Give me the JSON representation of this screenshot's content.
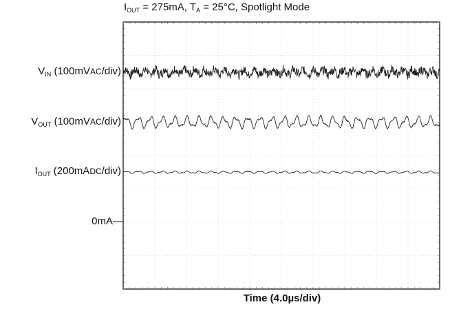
{
  "chart_data": {
    "type": "line",
    "title": {
      "i": "I",
      "i_sub": "OUT",
      "mid": " = 275mA, T",
      "t_sub": "A",
      "rest": " = 25°C, Spotlight Mode"
    },
    "xlabel": "Time (4.0µs/div)",
    "x_divisions": 10,
    "y_divisions": 8,
    "grid": true,
    "series": [
      {
        "label": {
          "main": "V",
          "sub": "IN",
          "unit_pre": " (100mV",
          "unit_small": "AC",
          "unit_post": "/div)"
        },
        "level_div": 1.5,
        "ripple_freq_per_div": 3.2,
        "amplitude_div": 0.18,
        "noise": true,
        "color": "#222222"
      },
      {
        "label": {
          "main": "V",
          "sub": "OUT",
          "unit_pre": " (100mV",
          "unit_small": "AC",
          "unit_post": "/div)"
        },
        "level_div": 3.0,
        "ripple_freq_per_div": 2.6,
        "amplitude_div": 0.2,
        "noise": false,
        "color": "#222222"
      },
      {
        "label": {
          "main": "I",
          "sub": "OUT",
          "unit_pre": " (200mA",
          "unit_small": "DC",
          "unit_post": "/div)"
        },
        "level_div": 4.5,
        "ripple_freq_per_div": 2.6,
        "amplitude_div": 0.04,
        "noise": false,
        "color": "#222222"
      }
    ],
    "zero_marker": {
      "text": "0mA—",
      "level_div": 6.0
    }
  }
}
